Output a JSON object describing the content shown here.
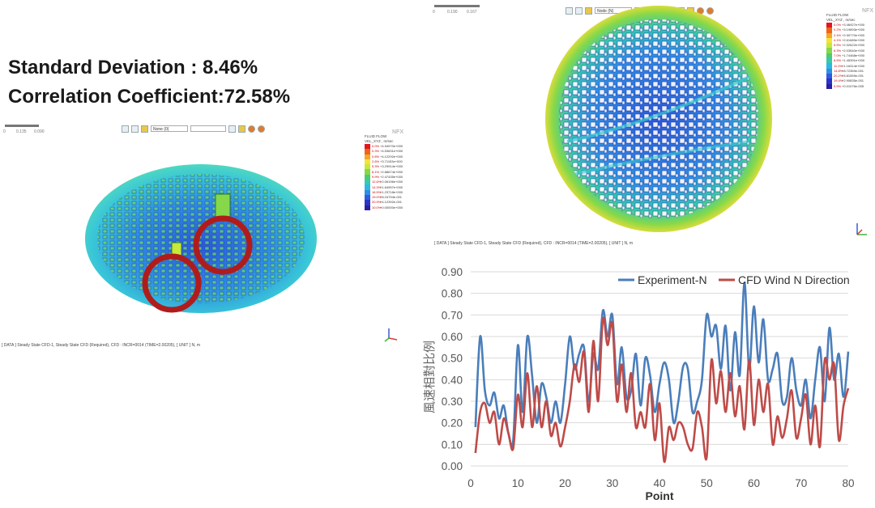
{
  "stats": {
    "std_dev": "Standard  Deviation : 8.46%",
    "correlation": "Correlation Coefficient:72.58%"
  },
  "left_panel": {
    "scale_labels": [
      "0",
      "0.135",
      "0.090"
    ],
    "dropdown": "None (0)",
    "legend_header": [
      "FLUID FLOW",
      "VEL_XYZ , m/sec"
    ],
    "legend_brand": "NFX",
    "legend_values": [
      "+4.94970e+000",
      "+4.53631e+000",
      "+4.12292e+000",
      "+3.71153e+000",
      "+3.29914e+000",
      "+2.88674e+000",
      "+2.47435e+000",
      "+2.06196e+000",
      "+1.64957e+000",
      "+1.23718e+000",
      "+8.24794e-001",
      "+4.12392e-001",
      "+0.00000e+000"
    ],
    "legend_pcts": [
      "0.0%",
      "0.3%",
      "0.8%",
      "2.6%",
      "5.3%",
      "8.1%",
      "9.9%",
      "12.6%",
      "14.3%",
      "16.5%",
      "19.0%",
      "20.9%",
      "10.0%"
    ],
    "legend_colors": [
      "#e8141c",
      "#f06418",
      "#f5a623",
      "#f6e23a",
      "#c8e83a",
      "#86d84a",
      "#4ccc6c",
      "#38c8b0",
      "#2cb8e0",
      "#2e8fe8",
      "#2d5ce0",
      "#2c34c8",
      "#2a1fa0"
    ],
    "status": "[ DATA ]  Steady State CFD-1,  Steady State CFD (Required),  CFD : INCR=0014 (TIME=2.00205),  [ UNIT ]   N, m"
  },
  "right_panel": {
    "scale_labels": [
      "0",
      "0.190",
      "0.167"
    ],
    "dropdown": "Node (N)",
    "legend_header": [
      "FLUID FLOW",
      "VEL_XYZ , m/sec"
    ],
    "legend_brand": "NFX",
    "legend_values": [
      "+3.46927e+000",
      "+3.19893e+000",
      "+2.90770e+000",
      "+2.61689e+000",
      "+2.32622e+000",
      "+2.03540e+000",
      "+1.74468e+000",
      "+1.45391e+000",
      "+1.16314e+000",
      "+8.72369e-001",
      "+5.81559e-001",
      "+2.90835e-001",
      "+0.01076e-005"
    ],
    "legend_pcts": [
      "0.0%",
      "0.2%",
      "2.4%",
      "4.1%",
      "5.5%",
      "6.3%",
      "7.0%",
      "8.5%",
      "11.0%",
      "14.8%",
      "20.2%",
      "19.4%",
      "0.5%"
    ],
    "legend_colors": [
      "#e8141c",
      "#f06418",
      "#f5a623",
      "#f6e23a",
      "#c8e83a",
      "#86d84a",
      "#4ccc6c",
      "#38c8b0",
      "#2cb8e0",
      "#2e8fe8",
      "#2d5ce0",
      "#2c34c8",
      "#2a1fa0"
    ],
    "status": "[ DATA ]  Steady State CFD-1,  Steady State CFD (Required),  CFD : INCR=0014 (TIME=2.00205),  [ UNIT ]   N, m"
  },
  "chart_data": {
    "type": "line",
    "xlabel": "Point",
    "ylabel": "風速相對比例",
    "xlim": [
      0,
      80
    ],
    "ylim": [
      0,
      0.9
    ],
    "xticks": [
      0,
      10,
      20,
      30,
      40,
      50,
      60,
      70,
      80
    ],
    "yticks": [
      "0.00",
      "0.10",
      "0.20",
      "0.30",
      "0.40",
      "0.50",
      "0.60",
      "0.70",
      "0.80",
      "0.90"
    ],
    "legend_position": "top-right",
    "grid": "horizontal",
    "x": [
      1,
      2,
      3,
      4,
      5,
      6,
      7,
      8,
      9,
      10,
      11,
      12,
      13,
      14,
      15,
      16,
      17,
      18,
      19,
      20,
      21,
      22,
      23,
      24,
      25,
      26,
      27,
      28,
      29,
      30,
      31,
      32,
      33,
      34,
      35,
      36,
      37,
      38,
      39,
      40,
      41,
      42,
      43,
      44,
      45,
      46,
      47,
      48,
      49,
      50,
      51,
      52,
      53,
      54,
      55,
      56,
      57,
      58,
      59,
      60,
      61,
      62,
      63,
      64,
      65,
      66,
      67,
      68,
      69,
      70,
      71,
      72,
      73,
      74,
      75,
      76,
      77,
      78,
      79,
      80
    ],
    "series": [
      {
        "name": "Experiment-N",
        "color": "#4a7ebb",
        "values": [
          0.18,
          0.6,
          0.35,
          0.28,
          0.34,
          0.22,
          0.28,
          0.15,
          0.12,
          0.56,
          0.25,
          0.6,
          0.42,
          0.2,
          0.38,
          0.32,
          0.2,
          0.3,
          0.2,
          0.38,
          0.6,
          0.45,
          0.52,
          0.55,
          0.3,
          0.52,
          0.45,
          0.72,
          0.6,
          0.7,
          0.38,
          0.55,
          0.32,
          0.35,
          0.52,
          0.28,
          0.5,
          0.42,
          0.25,
          0.38,
          0.48,
          0.4,
          0.2,
          0.3,
          0.46,
          0.45,
          0.25,
          0.3,
          0.4,
          0.7,
          0.6,
          0.65,
          0.45,
          0.65,
          0.35,
          0.62,
          0.42,
          0.85,
          0.45,
          0.74,
          0.48,
          0.68,
          0.4,
          0.45,
          0.52,
          0.3,
          0.32,
          0.5,
          0.35,
          0.28,
          0.4,
          0.22,
          0.4,
          0.55,
          0.3,
          0.64,
          0.4,
          0.52,
          0.32,
          0.53
        ]
      },
      {
        "name": "CFD Wind N Direction",
        "color": "#be4b48",
        "values": [
          0.06,
          0.25,
          0.29,
          0.2,
          0.25,
          0.1,
          0.22,
          0.15,
          0.08,
          0.33,
          0.18,
          0.43,
          0.18,
          0.37,
          0.18,
          0.3,
          0.14,
          0.2,
          0.09,
          0.18,
          0.3,
          0.47,
          0.39,
          0.53,
          0.25,
          0.58,
          0.3,
          0.68,
          0.56,
          0.66,
          0.3,
          0.47,
          0.25,
          0.43,
          0.18,
          0.25,
          0.18,
          0.38,
          0.12,
          0.29,
          0.02,
          0.18,
          0.12,
          0.2,
          0.18,
          0.1,
          0.08,
          0.25,
          0.18,
          0.04,
          0.49,
          0.29,
          0.44,
          0.25,
          0.43,
          0.23,
          0.37,
          0.17,
          0.49,
          0.19,
          0.4,
          0.25,
          0.38,
          0.1,
          0.23,
          0.13,
          0.22,
          0.35,
          0.13,
          0.22,
          0.33,
          0.1,
          0.28,
          0.09,
          0.49,
          0.4,
          0.47,
          0.12,
          0.28,
          0.36
        ]
      }
    ]
  }
}
